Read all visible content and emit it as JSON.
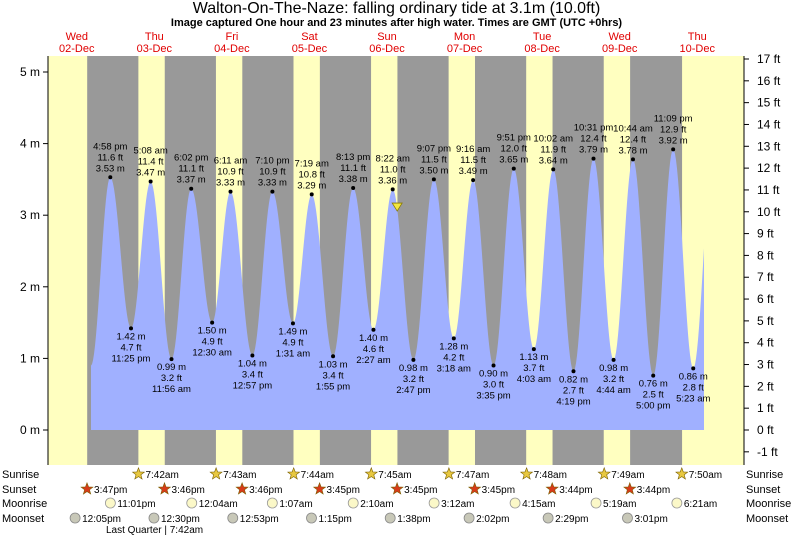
{
  "title": "Walton-On-The-Naze: falling  ordinary tide at 3.1m (10.0ft)",
  "subtitle": "Image captured One hour and 23 minutes after high water. Times are GMT (UTC +0hrs)",
  "days": [
    {
      "name": "Wed",
      "date": "02-Dec"
    },
    {
      "name": "Thu",
      "date": "03-Dec"
    },
    {
      "name": "Fri",
      "date": "04-Dec"
    },
    {
      "name": "Sat",
      "date": "05-Dec"
    },
    {
      "name": "Sun",
      "date": "06-Dec"
    },
    {
      "name": "Mon",
      "date": "07-Dec"
    },
    {
      "name": "Tue",
      "date": "08-Dec"
    },
    {
      "name": "Wed",
      "date": "09-Dec"
    },
    {
      "name": "Thu",
      "date": "10-Dec"
    }
  ],
  "chart_data": {
    "type": "area",
    "y_left_unit": "m",
    "y_left_ticks": [
      "0 m",
      "1 m",
      "2 m",
      "3 m",
      "4 m",
      "5 m"
    ],
    "y_right_ticks": [
      "-1 ft",
      "0 ft",
      "1 ft",
      "2 ft",
      "3 ft",
      "4 ft",
      "5 ft",
      "6 ft",
      "7 ft",
      "8 ft",
      "9 ft",
      "10 ft",
      "11 ft",
      "12 ft",
      "13 ft",
      "14 ft",
      "15 ft",
      "16 ft",
      "17 ft"
    ],
    "ylim_m": [
      -0.4,
      5.2
    ],
    "current": {
      "state": "falling",
      "height_m": 3.1,
      "height_ft": 10.0
    },
    "tides": [
      {
        "type": "high",
        "day": 0.958,
        "m": "3.53 m",
        "ft": "11.6 ft",
        "time": "4:58 pm"
      },
      {
        "type": "low",
        "day": 1.225,
        "m": "1.42 m",
        "ft": "4.7 ft",
        "time": "11:25 pm"
      },
      {
        "type": "high",
        "day": 1.478,
        "m": "3.47 m",
        "ft": "11.4 ft",
        "time": "5:08 am"
      },
      {
        "type": "low",
        "day": 1.747,
        "m": "0.99 m",
        "ft": "3.2 ft",
        "time": "11:56 am"
      },
      {
        "type": "high",
        "day": 2.001,
        "m": "3.37 m",
        "ft": "11.1 ft",
        "time": "6:02 pm"
      },
      {
        "type": "low",
        "day": 2.271,
        "m": "1.50 m",
        "ft": "4.9 ft",
        "time": "12:30 am"
      },
      {
        "type": "high",
        "day": 2.508,
        "m": "3.33 m",
        "ft": "10.9 ft",
        "time": "6:11 am"
      },
      {
        "type": "low",
        "day": 2.79,
        "m": "1.04 m",
        "ft": "3.4 ft",
        "time": "12:57 pm"
      },
      {
        "type": "high",
        "day": 3.048,
        "m": "3.33 m",
        "ft": "10.9 ft",
        "time": "7:10 pm"
      },
      {
        "type": "low",
        "day": 3.313,
        "m": "1.49 m",
        "ft": "4.9 ft",
        "time": "1:31 am"
      },
      {
        "type": "high",
        "day": 3.555,
        "m": "3.29 m",
        "ft": "10.8 ft",
        "time": "7:19 am"
      },
      {
        "type": "low",
        "day": 3.83,
        "m": "1.03 m",
        "ft": "3.4 ft",
        "time": "1:55 pm"
      },
      {
        "type": "high",
        "day": 4.089,
        "m": "3.38 m",
        "ft": "11.1 ft",
        "time": "8:13 pm"
      },
      {
        "type": "low",
        "day": 4.351,
        "m": "1.40 m",
        "ft": "4.6 ft",
        "time": "2:27 am"
      },
      {
        "type": "high",
        "day": 4.599,
        "m": "3.36 m",
        "ft": "11.0 ft",
        "time": "8:22 am"
      },
      {
        "type": "low",
        "day": 4.866,
        "m": "0.98 m",
        "ft": "3.2 ft",
        "time": "2:47 pm"
      },
      {
        "type": "high",
        "day": 5.13,
        "m": "3.50 m",
        "ft": "11.5 ft",
        "time": "9:07 pm"
      },
      {
        "type": "low",
        "day": 5.387,
        "m": "1.28 m",
        "ft": "4.2 ft",
        "time": "3:18 am"
      },
      {
        "type": "high",
        "day": 5.636,
        "m": "3.49 m",
        "ft": "11.5 ft",
        "time": "9:16 am"
      },
      {
        "type": "low",
        "day": 5.899,
        "m": "0.90 m",
        "ft": "3.0 ft",
        "time": "3:35 pm"
      },
      {
        "type": "high",
        "day": 6.16,
        "m": "3.65 m",
        "ft": "12.0 ft",
        "time": "9:51 pm"
      },
      {
        "type": "low",
        "day": 6.419,
        "m": "1.13 m",
        "ft": "3.7 ft",
        "time": "4:03 am"
      },
      {
        "type": "high",
        "day": 6.669,
        "m": "3.64 m",
        "ft": "11.9 ft",
        "time": "10:02 am"
      },
      {
        "type": "low",
        "day": 6.93,
        "m": "0.82 m",
        "ft": "2.7 ft",
        "time": "4:19 pm"
      },
      {
        "type": "high",
        "day": 7.188,
        "m": "3.79 m",
        "ft": "12.4 ft",
        "time": "10:31 pm"
      },
      {
        "type": "low",
        "day": 7.447,
        "m": "0.98 m",
        "ft": "3.2 ft",
        "time": "4:44 am"
      },
      {
        "type": "high",
        "day": 7.697,
        "m": "3.78 m",
        "ft": "12.4 ft",
        "time": "10:44 am"
      },
      {
        "type": "low",
        "day": 7.958,
        "m": "0.76 m",
        "ft": "2.5 ft",
        "time": "5:00 pm"
      },
      {
        "type": "high",
        "day": 8.215,
        "m": "3.92 m",
        "ft": "12.9 ft",
        "time": "11:09 pm"
      },
      {
        "type": "low",
        "day": 8.474,
        "m": "0.86 m",
        "ft": "2.8 ft",
        "time": "5:23 am"
      }
    ],
    "night_periods": [
      [
        0.66,
        1.32
      ],
      [
        1.66,
        2.32
      ],
      [
        2.66,
        3.32
      ],
      [
        3.66,
        4.32
      ],
      [
        4.66,
        5.32
      ],
      [
        5.66,
        6.32
      ],
      [
        6.66,
        7.32
      ],
      [
        7.66,
        8.33
      ]
    ],
    "colors": {
      "day": "#ffffc0",
      "night": "#999999",
      "water": "#a0b0ff",
      "day_label": "#e00000",
      "marker": "#f2e640"
    }
  },
  "rows": {
    "sunrise_label": "Sunrise",
    "sunset_label": "Sunset",
    "moonrise_label": "Moonrise",
    "moonset_label": "Moonset",
    "sunrise": [
      {
        "day": 1.321,
        "time": "7:42am"
      },
      {
        "day": 2.322,
        "time": "7:43am"
      },
      {
        "day": 3.322,
        "time": "7:44am"
      },
      {
        "day": 4.323,
        "time": "7:45am"
      },
      {
        "day": 5.324,
        "time": "7:47am"
      },
      {
        "day": 6.325,
        "time": "7:48am"
      },
      {
        "day": 7.326,
        "time": "7:49am"
      },
      {
        "day": 8.326,
        "time": "7:50am"
      }
    ],
    "sunset": [
      {
        "day": 0.658,
        "time": "3:47pm"
      },
      {
        "day": 1.657,
        "time": "3:46pm"
      },
      {
        "day": 2.657,
        "time": "3:46pm"
      },
      {
        "day": 3.656,
        "time": "3:45pm"
      },
      {
        "day": 4.656,
        "time": "3:45pm"
      },
      {
        "day": 5.656,
        "time": "3:45pm"
      },
      {
        "day": 6.656,
        "time": "3:44pm"
      },
      {
        "day": 7.656,
        "time": "3:44pm"
      }
    ],
    "moonrise": [
      {
        "day": 0.959,
        "time": "11:01pm"
      },
      {
        "day": 2.008,
        "time": "12:04am"
      },
      {
        "day": 3.047,
        "time": "1:07am"
      },
      {
        "day": 4.09,
        "time": "2:10am"
      },
      {
        "day": 5.133,
        "time": "3:12am"
      },
      {
        "day": 6.177,
        "time": "4:15am"
      },
      {
        "day": 7.221,
        "time": "5:19am"
      },
      {
        "day": 8.263,
        "time": "6:21am"
      }
    ],
    "moonset": [
      {
        "day": 0.504,
        "time": "12:05pm"
      },
      {
        "day": 1.521,
        "time": "12:30pm"
      },
      {
        "day": 2.537,
        "time": "12:53pm"
      },
      {
        "day": 3.552,
        "time": "1:15pm"
      },
      {
        "day": 4.567,
        "time": "1:38pm"
      },
      {
        "day": 5.584,
        "time": "2:02pm"
      },
      {
        "day": 6.603,
        "time": "2:29pm"
      },
      {
        "day": 7.626,
        "time": "3:01pm"
      }
    ],
    "moon_phase": "Last Quarter | 7:42am"
  }
}
